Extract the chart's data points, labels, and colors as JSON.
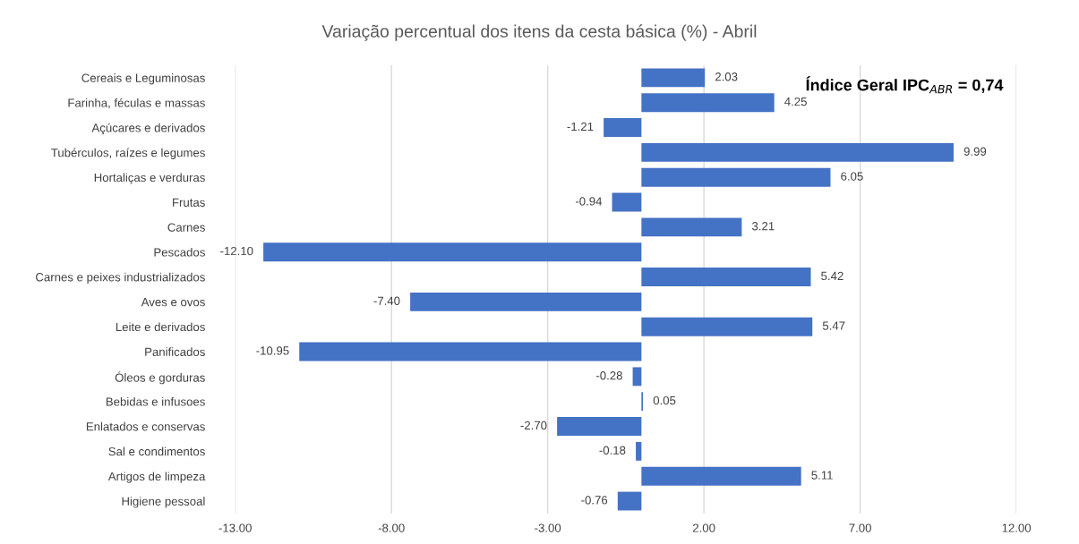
{
  "chart_data": {
    "type": "bar",
    "orientation": "horizontal",
    "title": "Variação percentual dos itens da cesta básica (%) - Abril",
    "categories": [
      "Cereais e Leguminosas",
      "Farinha, féculas e massas",
      "Açúcares e derivados",
      "Tubérculos, raízes e legumes",
      "Hortaliças e verduras",
      "Frutas",
      "Carnes",
      "Pescados",
      "Carnes e peixes industrializados",
      "Aves e ovos",
      "Leite e derivados",
      "Panificados",
      "Óleos e gorduras",
      "Bebidas e infusoes",
      "Enlatados e conservas",
      "Sal e condimentos",
      "Artigos de limpeza",
      "Higiene pessoal"
    ],
    "values": [
      2.03,
      4.25,
      -1.21,
      9.99,
      6.05,
      -0.94,
      3.21,
      -12.1,
      5.42,
      -7.4,
      5.47,
      -10.95,
      -0.28,
      0.05,
      -2.7,
      -0.18,
      5.11,
      -0.76
    ],
    "value_labels": [
      "2.03",
      "4.25",
      "-1.21",
      "9.99",
      "6.05",
      "-0.94",
      "3.21",
      "-12.10",
      "5.42",
      "-7.40",
      "5.47",
      "-10.95",
      "-0.28",
      "0.05",
      "-2.70",
      "-0.18",
      "5.11",
      "-0.76"
    ],
    "color": "#4472c4",
    "xlim": [
      -13,
      12
    ],
    "xticks": [
      {
        "value": -13,
        "label": "-13.00"
      },
      {
        "value": -8,
        "label": "-8.00"
      },
      {
        "value": -3,
        "label": "-3.00"
      },
      {
        "value": 2,
        "label": "2.00"
      },
      {
        "value": 7,
        "label": "7.00"
      },
      {
        "value": 12,
        "label": "12.00"
      }
    ],
    "grid": "x",
    "annotations": [
      "Índice Geral IPC$_{ABR}$ = 0,74"
    ]
  }
}
